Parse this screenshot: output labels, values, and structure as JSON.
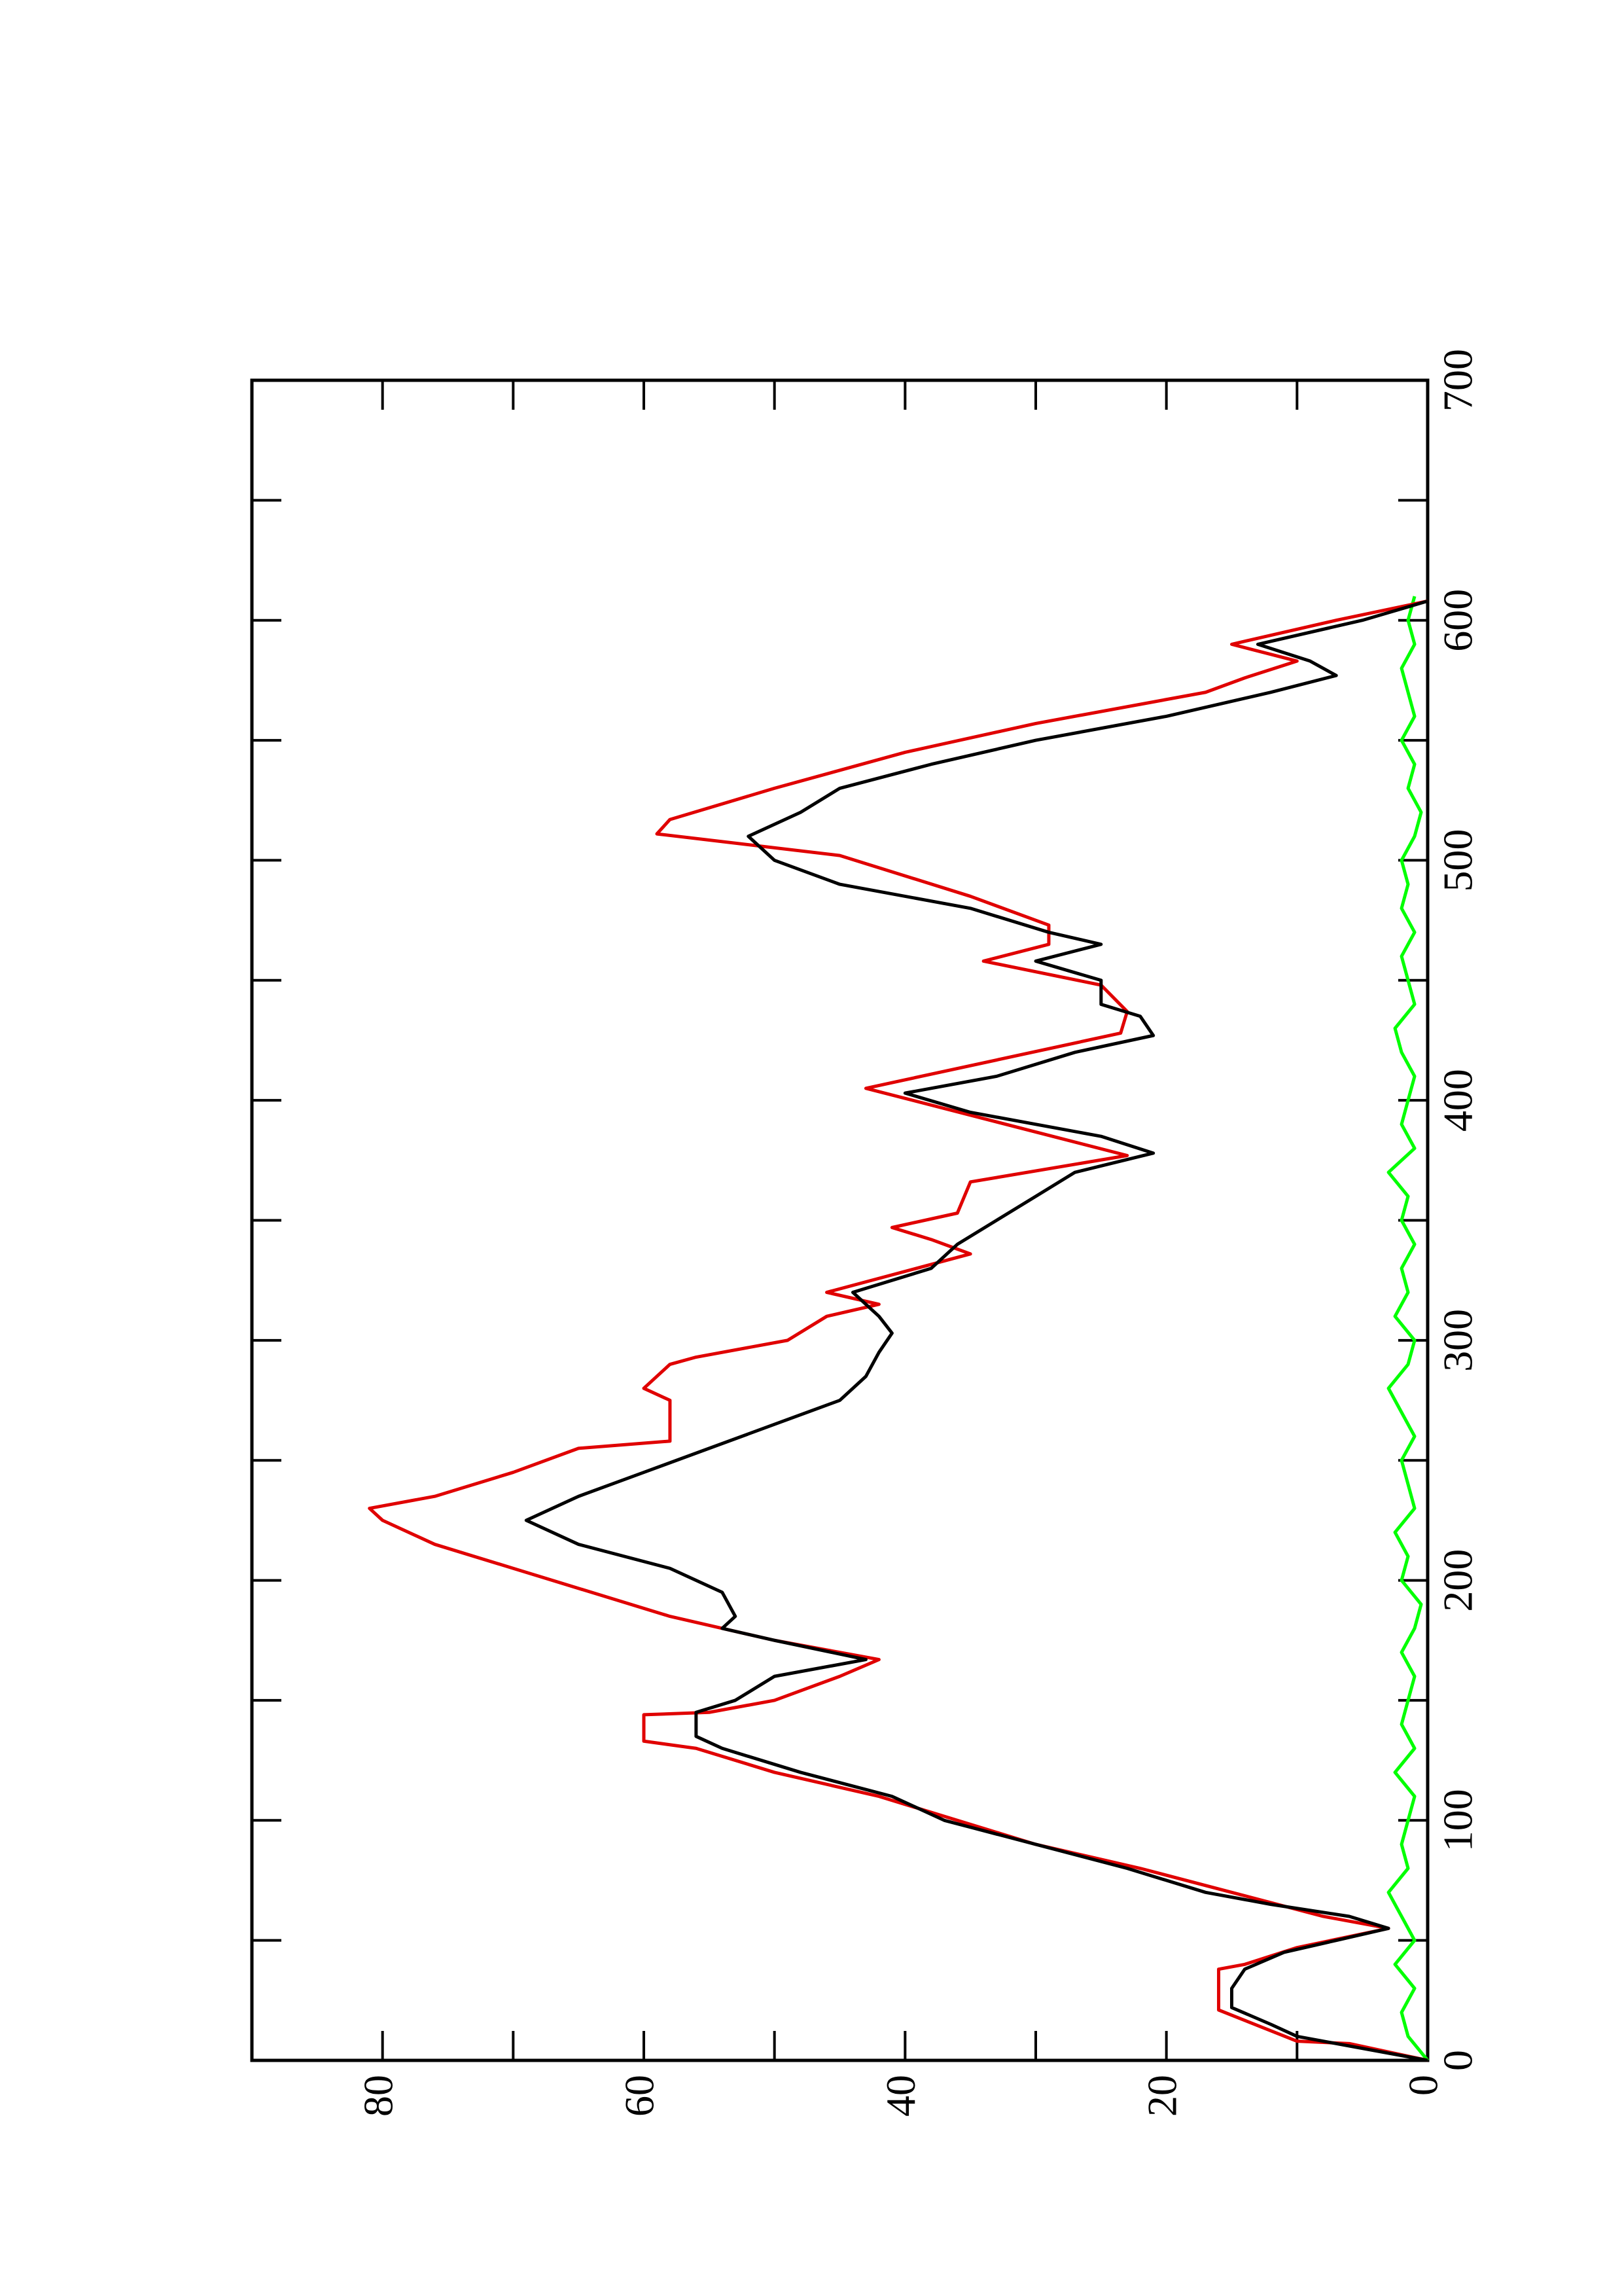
{
  "chart_data": {
    "type": "line",
    "xlim": [
      0,
      700
    ],
    "xticks": [
      0,
      100,
      200,
      300,
      400,
      500,
      600,
      700
    ],
    "xminorticks": [
      50,
      150,
      250,
      350,
      450,
      550,
      650
    ],
    "ylim": [
      0,
      90
    ],
    "yticks": [
      0,
      20,
      40,
      60,
      80
    ],
    "yminorticks": [
      10,
      30,
      50,
      70,
      90
    ],
    "series": [
      {
        "color": "#00ff00",
        "x": [
          0,
          10,
          20,
          30,
          40,
          50,
          60,
          70,
          80,
          90,
          100,
          110,
          120,
          130,
          140,
          150,
          160,
          170,
          180,
          190,
          200,
          210,
          220,
          230,
          240,
          250,
          260,
          270,
          280,
          290,
          300,
          310,
          320,
          330,
          340,
          350,
          360,
          370,
          380,
          390,
          400,
          410,
          420,
          430,
          440,
          450,
          460,
          470,
          480,
          490,
          500,
          510,
          520,
          530,
          540,
          550,
          560,
          570,
          580,
          590,
          600,
          610
        ],
        "values": [
          0,
          1.5,
          2,
          1,
          2.5,
          1,
          2,
          3,
          1.5,
          2,
          1.5,
          1,
          2.5,
          1,
          2,
          1.5,
          1,
          2,
          1,
          0.5,
          2,
          1.5,
          2.5,
          1,
          1.5,
          2,
          1,
          2,
          3,
          1.5,
          1,
          2.5,
          1.5,
          2,
          1,
          2,
          1.5,
          3,
          1,
          2,
          1.5,
          1,
          2,
          2.5,
          1,
          1.5,
          2,
          1,
          2,
          1.5,
          2,
          1,
          0.5,
          1.5,
          1,
          2,
          1,
          1.5,
          2,
          1,
          1.5,
          1
        ]
      },
      {
        "color": "#e00000",
        "x": [
          0,
          7,
          8,
          21,
          38,
          40,
          47,
          55,
          60,
          70,
          80,
          90,
          100,
          110,
          120,
          130,
          133,
          144,
          145,
          150,
          160,
          167,
          175,
          185,
          195,
          205,
          215,
          225,
          230,
          235,
          245,
          255,
          258,
          275,
          280,
          290,
          293,
          300,
          310,
          315,
          320,
          336,
          342,
          347,
          353,
          366,
          377,
          405,
          428,
          437,
          448,
          458,
          465,
          473,
          485,
          502,
          511,
          517,
          530,
          545,
          557,
          570,
          576,
          583,
          590,
          600,
          608
        ],
        "values": [
          0,
          6,
          10,
          16,
          16,
          14,
          10,
          3,
          8,
          15,
          22,
          30,
          36,
          42,
          50,
          56,
          60,
          60,
          55,
          50,
          45,
          42,
          50,
          58,
          64,
          70,
          76,
          80,
          81,
          76,
          70,
          65,
          58,
          58,
          60,
          58,
          56,
          49,
          46,
          42,
          46,
          35,
          38,
          41,
          36,
          35,
          23,
          43,
          23.5,
          23,
          25,
          34,
          29,
          29,
          35,
          45,
          59,
          58,
          50,
          40,
          30,
          17,
          14,
          10,
          15,
          7,
          0
        ]
      },
      {
        "color": "#000000",
        "x": [
          0,
          5,
          10,
          15,
          22,
          30,
          38,
          45,
          50,
          55,
          60,
          65,
          70,
          80,
          90,
          100,
          110,
          120,
          130,
          135,
          145,
          150,
          160,
          167,
          175,
          180,
          185,
          195,
          205,
          215,
          225,
          235,
          245,
          255,
          265,
          275,
          285,
          295,
          303,
          310,
          320,
          330,
          340,
          350,
          360,
          370,
          378,
          385,
          395,
          403,
          410,
          420,
          427,
          435,
          440,
          450,
          458,
          465,
          470,
          480,
          490,
          500,
          510,
          520,
          530,
          540,
          550,
          560,
          570,
          577,
          583,
          590,
          600,
          608
        ],
        "values": [
          0,
          5,
          10,
          12,
          15,
          15,
          14,
          11,
          7,
          3,
          6,
          12,
          17,
          23,
          30,
          37,
          41,
          48,
          54,
          56,
          56,
          53,
          50,
          43,
          50,
          54,
          53,
          54,
          58,
          65,
          69,
          65,
          60,
          55,
          50,
          45,
          43,
          42,
          41,
          42,
          44,
          38,
          36,
          33,
          30,
          27,
          21,
          25,
          35,
          40,
          33,
          27,
          21,
          22,
          25,
          25,
          30,
          25,
          29,
          35,
          45,
          50,
          52,
          48,
          45,
          38,
          30,
          20,
          12,
          7,
          9,
          13,
          5,
          0
        ]
      }
    ]
  }
}
